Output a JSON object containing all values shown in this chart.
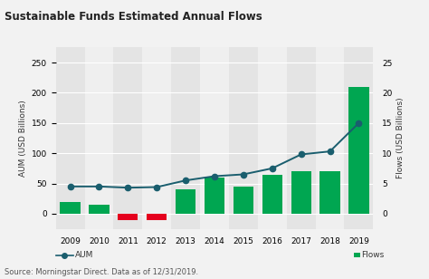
{
  "title": "Sustainable Funds Estimated Annual Flows",
  "years": [
    2009,
    2010,
    2011,
    2012,
    2013,
    2014,
    2015,
    2016,
    2017,
    2018,
    2019
  ],
  "flows": [
    2.0,
    1.5,
    -1.0,
    -1.0,
    4.0,
    6.0,
    4.5,
    6.5,
    7.0,
    7.0,
    21.0
  ],
  "aum": [
    45,
    45,
    43,
    44,
    55,
    62,
    65,
    75,
    98,
    103,
    150
  ],
  "bar_colors": [
    "#00a651",
    "#00a651",
    "#e5001e",
    "#e5001e",
    "#00a651",
    "#00a651",
    "#00a651",
    "#00a651",
    "#00a651",
    "#00a651",
    "#00a651"
  ],
  "line_color": "#1a5e6e",
  "ylabel_left": "AUM (USD Billions)",
  "ylabel_right": "Flows (USD Billions)",
  "ylim_left": [
    -25,
    275
  ],
  "ylim_right": [
    -2.5,
    27.5
  ],
  "yticks_left": [
    0,
    50,
    100,
    150,
    200,
    250
  ],
  "yticks_right": [
    0,
    5,
    10,
    15,
    20,
    25
  ],
  "source_text": "Source: Morningstar Direct. Data as of 12/31/2019.",
  "background_color": "#f2f2f2",
  "plot_bg": "#efefef",
  "grid_color": "#ffffff",
  "stripe_dark": "#e4e4e4",
  "stripe_light": "#efefef"
}
